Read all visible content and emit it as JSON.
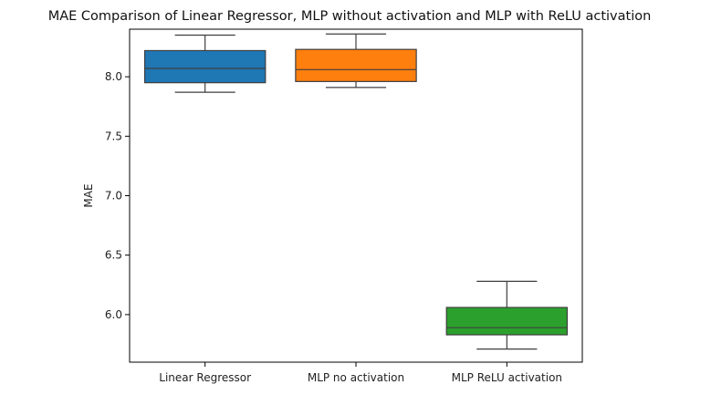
{
  "chart_data": {
    "type": "box",
    "title": "MAE Comparison of Linear Regressor, MLP without activation and MLP with ReLU activation",
    "xlabel": "",
    "ylabel": "MAE",
    "ylim": [
      5.6,
      8.4
    ],
    "yticks": [
      "6.0",
      "6.5",
      "7.0",
      "7.5",
      "8.0"
    ],
    "grid": false,
    "categories": [
      "Linear Regressor",
      "MLP no activation",
      "MLP ReLU activation"
    ],
    "boxes": [
      {
        "category": "Linear Regressor",
        "whisker_low": 7.87,
        "q1": 7.95,
        "median": 8.07,
        "q3": 8.22,
        "whisker_high": 8.35,
        "color": "#1f77b4"
      },
      {
        "category": "MLP no activation",
        "whisker_low": 7.91,
        "q1": 7.96,
        "median": 8.06,
        "q3": 8.23,
        "whisker_high": 8.36,
        "color": "#ff7f0e"
      },
      {
        "category": "MLP ReLU activation",
        "whisker_low": 5.71,
        "q1": 5.83,
        "median": 5.89,
        "q3": 6.06,
        "whisker_high": 6.28,
        "color": "#2ca02c"
      }
    ]
  }
}
